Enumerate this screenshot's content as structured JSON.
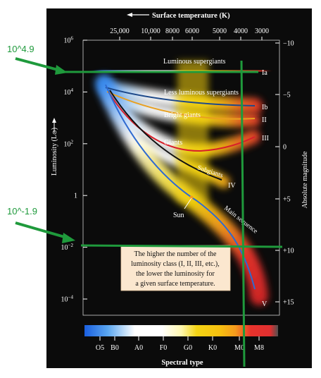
{
  "chart_data": {
    "type": "scatter",
    "title": "",
    "top_axis_label": "Surface temperature (K)",
    "top_ticks": [
      "25,000",
      "10,000",
      "8000",
      "6000",
      "5000",
      "4000",
      "3000"
    ],
    "xlabel": "Spectral type",
    "x_ticks": [
      "O5",
      "B0",
      "A0",
      "F0",
      "G0",
      "K0",
      "M0",
      "M8"
    ],
    "ylabel": "Luminosity (L",
    "ylabel_symbol": "⊙",
    "ylabel_close": ")",
    "y_scale": "log",
    "ylim": [
      0.0001,
      1000000
    ],
    "y_ticks": [
      {
        "base": "10",
        "exp": "6",
        "value": 1000000
      },
      {
        "base": "10",
        "exp": "4",
        "value": 10000
      },
      {
        "base": "10",
        "exp": "2",
        "value": 100
      },
      {
        "base": "1",
        "exp": "",
        "value": 1
      },
      {
        "base": "10",
        "exp": "−2",
        "value": 0.01
      },
      {
        "base": "10",
        "exp": "−4",
        "value": 0.0001
      }
    ],
    "y2label": "Absolute magnitude",
    "y2_ticks": [
      "−10",
      "−5",
      "0",
      "+5",
      "+10",
      "+15"
    ],
    "bands": [
      {
        "label": "Luminous supergiants",
        "class": "Ia"
      },
      {
        "label": "Less luminous supergiants",
        "class": "Ib"
      },
      {
        "label": "Bright giants",
        "class": "II"
      },
      {
        "label": "Giants",
        "class": "III"
      },
      {
        "label": "Subgiants",
        "class": "IV"
      },
      {
        "label": "Main sequence",
        "class": "V"
      }
    ],
    "sun_label": "Sun",
    "note": [
      "The higher the number of the",
      "luminosity class (I, II, III, etc.),",
      "the lower the luminosity for",
      "a given surface temperature."
    ],
    "colors": {
      "background": "#0b0b0b",
      "blue": "#2f7fe6",
      "white": "#ffffff",
      "yellow": "#f4d414",
      "orange": "#f59a1d",
      "red": "#e8322c"
    }
  },
  "annotations": {
    "upper_label": "10^4.9",
    "lower_label": "10^-1.9",
    "color": "#1f9a3c"
  }
}
